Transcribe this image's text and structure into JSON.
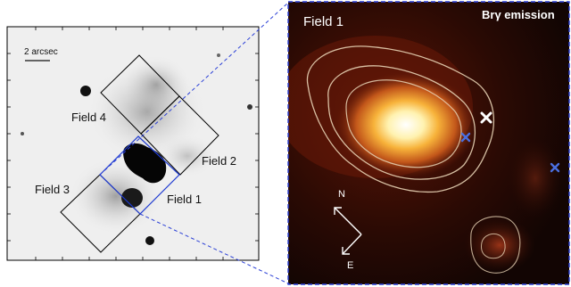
{
  "left_panel": {
    "scale_bar_label": "2 arcsec",
    "fields": [
      {
        "id": "field-4",
        "label": "Field 4"
      },
      {
        "id": "field-2",
        "label": "Field 2"
      },
      {
        "id": "field-3",
        "label": "Field 3"
      },
      {
        "id": "field-1",
        "label": "Field 1"
      }
    ]
  },
  "right_panel": {
    "field_label": "Field 1",
    "emission_label": "Brγ emission",
    "compass": {
      "north": "N",
      "east": "E"
    },
    "markers": [
      {
        "name": "white-x-marker",
        "symbol": "x",
        "color": "#ffffff"
      },
      {
        "name": "blue-x-marker-inner",
        "symbol": "x",
        "color": "#4a6fe0"
      },
      {
        "name": "blue-x-marker-outer",
        "symbol": "x",
        "color": "#4a6fe0"
      }
    ]
  },
  "colors": {
    "zoom_lines": "#2a3fd6",
    "field_box_black": "#000000",
    "field_box_blue": "#1f3bd1",
    "contours": "#e8d3b5",
    "emission_core": "#ffffff",
    "emission_mid": "#f2a030",
    "emission_low": "#7a1a06",
    "background_dark": "#0f0503"
  }
}
